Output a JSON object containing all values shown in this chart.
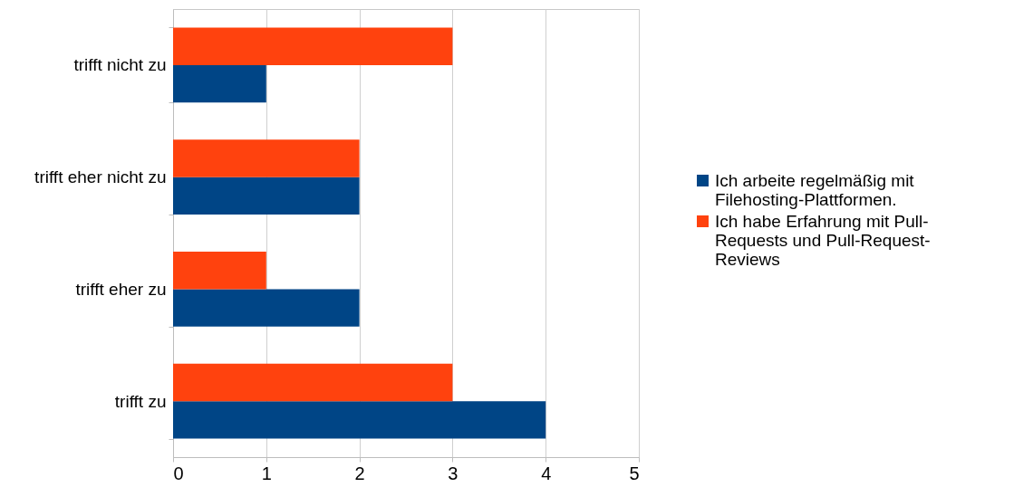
{
  "chart_data": {
    "type": "bar",
    "orientation": "horizontal",
    "categories": [
      "trifft nicht zu",
      "trifft eher nicht zu",
      "trifft eher zu",
      "trifft zu"
    ],
    "series": [
      {
        "name": "Ich arbeite regelmäßig mit Filehosting-Plattformen.",
        "color": "#004586",
        "values": [
          1,
          2,
          2,
          4
        ]
      },
      {
        "name": "Ich habe Erfahrung mit Pull-Requests und Pull-Request-Reviews",
        "color": "#ff420e",
        "values": [
          3,
          2,
          1,
          3
        ]
      }
    ],
    "xlim": [
      0,
      5
    ],
    "xticks": [
      0,
      1,
      2,
      3,
      4,
      5
    ],
    "grid": "x",
    "legend": "right"
  }
}
